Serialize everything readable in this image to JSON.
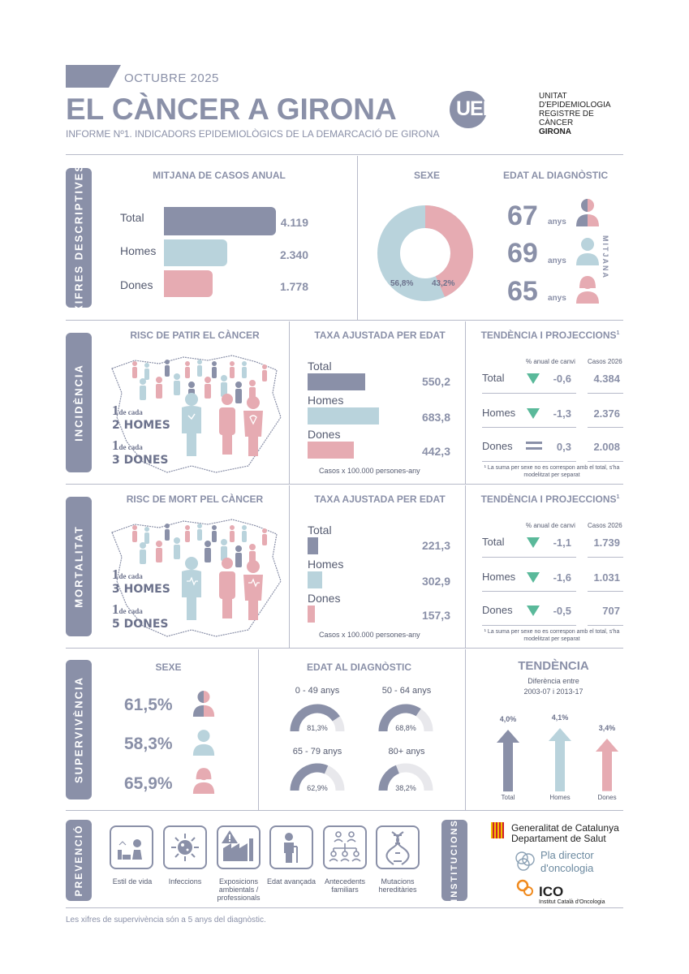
{
  "header": {
    "date": "OCTUBRE 2025",
    "title": "EL CÀNCER A GIRONA",
    "subtitle": "INFORME Nº1. INDICADORS EPIDEMIOLÒGICS DE LA DEMARCACIÓ DE GIRONA",
    "logo_mark": "UERCG",
    "logo_lines": [
      "UNITAT",
      "D'EPIDEMIOLOGIA",
      "REGISTRE DE CÀNCER",
      "GIRONA"
    ]
  },
  "descriptives": {
    "tab": "XIFRES DESCRIPTIVES",
    "cases_title": "MITJANA DE CASOS ANUAL",
    "cases": [
      {
        "label": "Total",
        "value": "4.119",
        "num": 4119,
        "color": "#8a90a8"
      },
      {
        "label": "Homes",
        "value": "2.340",
        "num": 2340,
        "color": "#b9d3dc"
      },
      {
        "label": "Dones",
        "value": "1.778",
        "num": 1778,
        "color": "#e6abb2"
      }
    ],
    "sex_title": "SEXE",
    "sex_men_pct": "56,8%",
    "sex_women_pct": "43,2%",
    "sex_men_value": 56.8,
    "age_title": "EDAT AL DIAGNÒSTIC",
    "ages": [
      {
        "value": "67",
        "unit": "anys"
      },
      {
        "value": "69",
        "unit": "anys"
      },
      {
        "value": "65",
        "unit": "anys"
      }
    ],
    "mitjana": "MITJANA"
  },
  "incidence": {
    "tab": "INCIDÈNCIA",
    "risk_title": "RISC DE PATIR EL CÀNCER",
    "ratio_men": {
      "n": "1",
      "mid": "de cada",
      "who": "2 HOMES"
    },
    "ratio_women": {
      "n": "1",
      "mid": "de cada",
      "who": "3 DONES"
    },
    "rate_title": "TAXA AJUSTADA PER EDAT",
    "rates": [
      {
        "label": "Total",
        "value": "550,2",
        "num": 550.2
      },
      {
        "label": "Homes",
        "value": "683,8",
        "num": 683.8
      },
      {
        "label": "Dones",
        "value": "442,3",
        "num": 442.3
      }
    ],
    "rate_note": "Casos x 100.000 persones-any",
    "trend_title": "TENDÈNCIA I PROJECCIONS",
    "trend_sup": "1",
    "col_change": "% anual de canvi",
    "col_cases": "Casos 2026",
    "trends": [
      {
        "label": "Total",
        "change": "-0,6",
        "cases": "4.384",
        "icon": "down-arrow-icon"
      },
      {
        "label": "Homes",
        "change": "-1,3",
        "cases": "2.376",
        "icon": "down-arrow-icon"
      },
      {
        "label": "Dones",
        "change": "0,3",
        "cases": "2.008",
        "icon": "equals-icon"
      }
    ],
    "footnote": "¹ La suma per sexe no es correspon amb el total, s'ha modelitzat per separat"
  },
  "mortality": {
    "tab": "MORTALITAT",
    "risk_title": "RISC DE MORT PEL CÀNCER",
    "ratio_men": {
      "n": "1",
      "mid": "de cada",
      "who": "3 HOMES"
    },
    "ratio_women": {
      "n": "1",
      "mid": "de cada",
      "who": "5 DONES"
    },
    "rate_title": "TAXA AJUSTADA PER EDAT",
    "rates": [
      {
        "label": "Total",
        "value": "221,3",
        "num": 221.3
      },
      {
        "label": "Homes",
        "value": "302,9",
        "num": 302.9
      },
      {
        "label": "Dones",
        "value": "157,3",
        "num": 157.3
      }
    ],
    "rate_note": "Casos x 100.000 persones-any",
    "trend_title": "TENDÈNCIA I PROJECCIONS",
    "trend_sup": "1",
    "col_change": "% anual de canvi",
    "col_cases": "Casos 2026",
    "trends": [
      {
        "label": "Total",
        "change": "-1,1",
        "cases": "1.739",
        "icon": "down-arrow-icon"
      },
      {
        "label": "Homes",
        "change": "-1,6",
        "cases": "1.031",
        "icon": "down-arrow-icon"
      },
      {
        "label": "Dones",
        "change": "-0,5",
        "cases": "707",
        "icon": "down-arrow-icon"
      }
    ],
    "footnote": "¹ La suma per sexe no es correspon amb el total, s'ha modelitzat per separat"
  },
  "survival": {
    "tab": "SUPERVIVÈNCIA",
    "sex_title": "SEXE",
    "sex": [
      {
        "value": "61,5%"
      },
      {
        "value": "58,3%"
      },
      {
        "value": "65,9%"
      }
    ],
    "age_title": "EDAT AL DIAGNÒSTIC",
    "ages": [
      {
        "label": "0 - 49 anys",
        "value": "81,3%",
        "num": 81.3
      },
      {
        "label": "50 - 64 anys",
        "value": "68,8%",
        "num": 68.8
      },
      {
        "label": "65 - 79 anys",
        "value": "62,9%",
        "num": 62.9
      },
      {
        "label": "80+ anys",
        "value": "38,2%",
        "num": 38.2
      }
    ],
    "trend_title": "TENDÈNCIA",
    "trend_sub1": "Diferència entre",
    "trend_sub2": "2003-07 i 2013-17",
    "trend": [
      {
        "label": "Total",
        "value": "4,0%",
        "num": 4.0,
        "color": "#8a90a8"
      },
      {
        "label": "Homes",
        "value": "4,1%",
        "num": 4.1,
        "color": "#b9d3dc"
      },
      {
        "label": "Dones",
        "value": "3,4%",
        "num": 3.4,
        "color": "#e6abb2"
      }
    ]
  },
  "prevention": {
    "tab": "PREVENCIÓ",
    "items": [
      {
        "label": "Estil de vida",
        "icon": "lifestyle-icon"
      },
      {
        "label": "Infeccions",
        "icon": "virus-icon"
      },
      {
        "label": "Exposicions ambientals / professionals",
        "icon": "factory-warning-icon"
      },
      {
        "label": "Edat avançada",
        "icon": "elderly-person-icon"
      },
      {
        "label": "Antecedents familiars",
        "icon": "family-tree-icon"
      },
      {
        "label": "Mutacions hereditàries",
        "icon": "dna-icon"
      }
    ]
  },
  "institutions": {
    "tab": "INSTITUCIONS",
    "gencat_1": "Generalitat de Catalunya",
    "gencat_2": "Departament de Salut",
    "pdo_1": "Pla director",
    "pdo_2": "d'oncologia",
    "ico_1": "ICO",
    "ico_2": "Institut Català d'Oncologia"
  },
  "footer": "Les xifres de supervivència són a 5 anys del diagnòstic.",
  "colors": {
    "slate": "#8a90a8",
    "blue": "#b9d3dc",
    "pink": "#e6abb2",
    "green": "#5ab99a"
  }
}
